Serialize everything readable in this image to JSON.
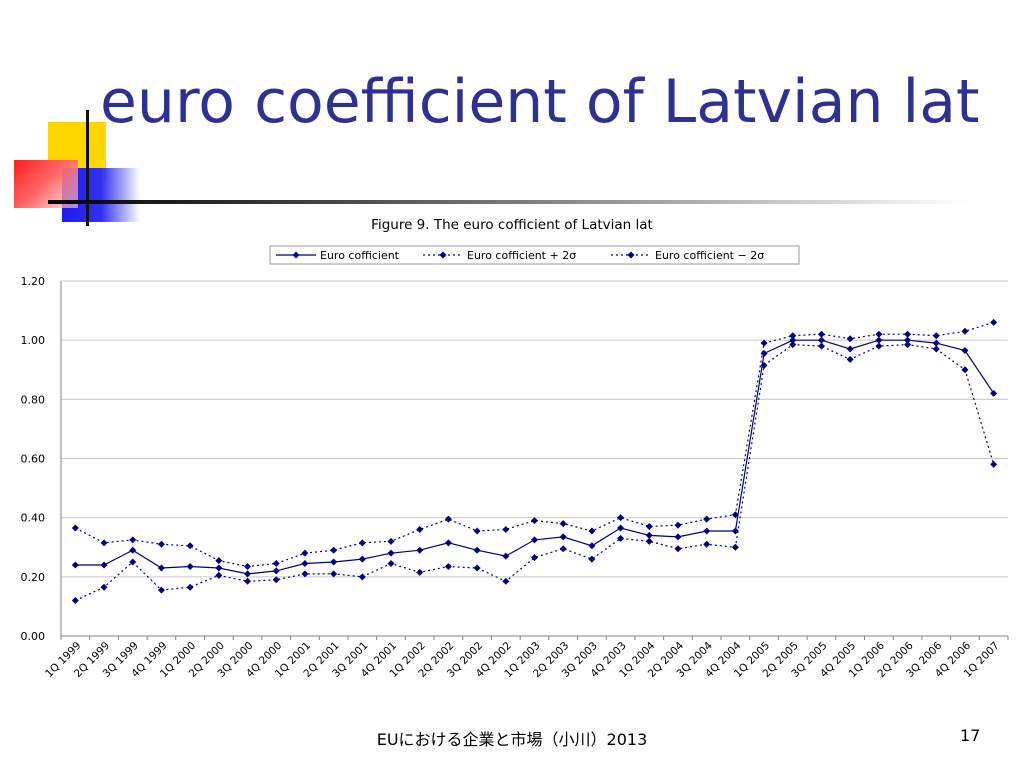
{
  "slide": {
    "title": "euro coefficient of Latvian lat",
    "footer": "EUにおける企業と市場（小川）2013",
    "page_number": "17"
  },
  "chart_data": {
    "type": "line",
    "title": "Figure 9. The euro cofficient of Latvian lat",
    "xlabel": "",
    "ylabel": "",
    "ylim": [
      0,
      1.2
    ],
    "yticks": [
      "0.00",
      "0.20",
      "0.40",
      "0.60",
      "0.80",
      "1.00",
      "1.20"
    ],
    "grid": true,
    "legend_position": "top",
    "categories": [
      "1Q 1999",
      "2Q 1999",
      "3Q 1999",
      "4Q 1999",
      "1Q 2000",
      "2Q 2000",
      "3Q 2000",
      "4Q 2000",
      "1Q 2001",
      "2Q 2001",
      "3Q 2001",
      "4Q 2001",
      "1Q 2002",
      "2Q 2002",
      "3Q 2002",
      "4Q 2002",
      "1Q 2003",
      "2Q 2003",
      "3Q 2003",
      "4Q 2003",
      "1Q 2004",
      "2Q 2004",
      "3Q 2004",
      "4Q 2004",
      "1Q 2005",
      "2Q 2005",
      "3Q 2005",
      "4Q 2005",
      "1Q 2006",
      "2Q 2006",
      "3Q 2006",
      "4Q 2006",
      "1Q 2007"
    ],
    "series": [
      {
        "name": "Euro cofficient",
        "style": "solid",
        "color": "#000080",
        "values": [
          0.24,
          0.24,
          0.29,
          0.23,
          0.235,
          0.23,
          0.21,
          0.22,
          0.245,
          0.25,
          0.26,
          0.28,
          0.29,
          0.315,
          0.29,
          0.27,
          0.325,
          0.335,
          0.305,
          0.365,
          0.34,
          0.335,
          0.355,
          0.355,
          0.955,
          1.0,
          1.0,
          0.97,
          1.0,
          1.0,
          0.99,
          0.965,
          0.82
        ]
      },
      {
        "name": "Euro cofficient + 2σ",
        "style": "dotted",
        "color": "#000080",
        "values": [
          0.365,
          0.315,
          0.325,
          0.31,
          0.305,
          0.255,
          0.235,
          0.245,
          0.28,
          0.29,
          0.315,
          0.32,
          0.36,
          0.395,
          0.355,
          0.36,
          0.39,
          0.38,
          0.355,
          0.4,
          0.37,
          0.375,
          0.395,
          0.41,
          0.99,
          1.015,
          1.02,
          1.005,
          1.02,
          1.02,
          1.015,
          1.03,
          1.06
        ]
      },
      {
        "name": "Euro cofficient − 2σ",
        "style": "dotted",
        "color": "#000080",
        "values": [
          0.12,
          0.165,
          0.25,
          0.155,
          0.165,
          0.205,
          0.185,
          0.19,
          0.21,
          0.21,
          0.2,
          0.245,
          0.215,
          0.235,
          0.23,
          0.185,
          0.265,
          0.295,
          0.26,
          0.33,
          0.32,
          0.295,
          0.31,
          0.3,
          0.915,
          0.985,
          0.98,
          0.935,
          0.98,
          0.985,
          0.97,
          0.9,
          0.58
        ]
      }
    ]
  }
}
